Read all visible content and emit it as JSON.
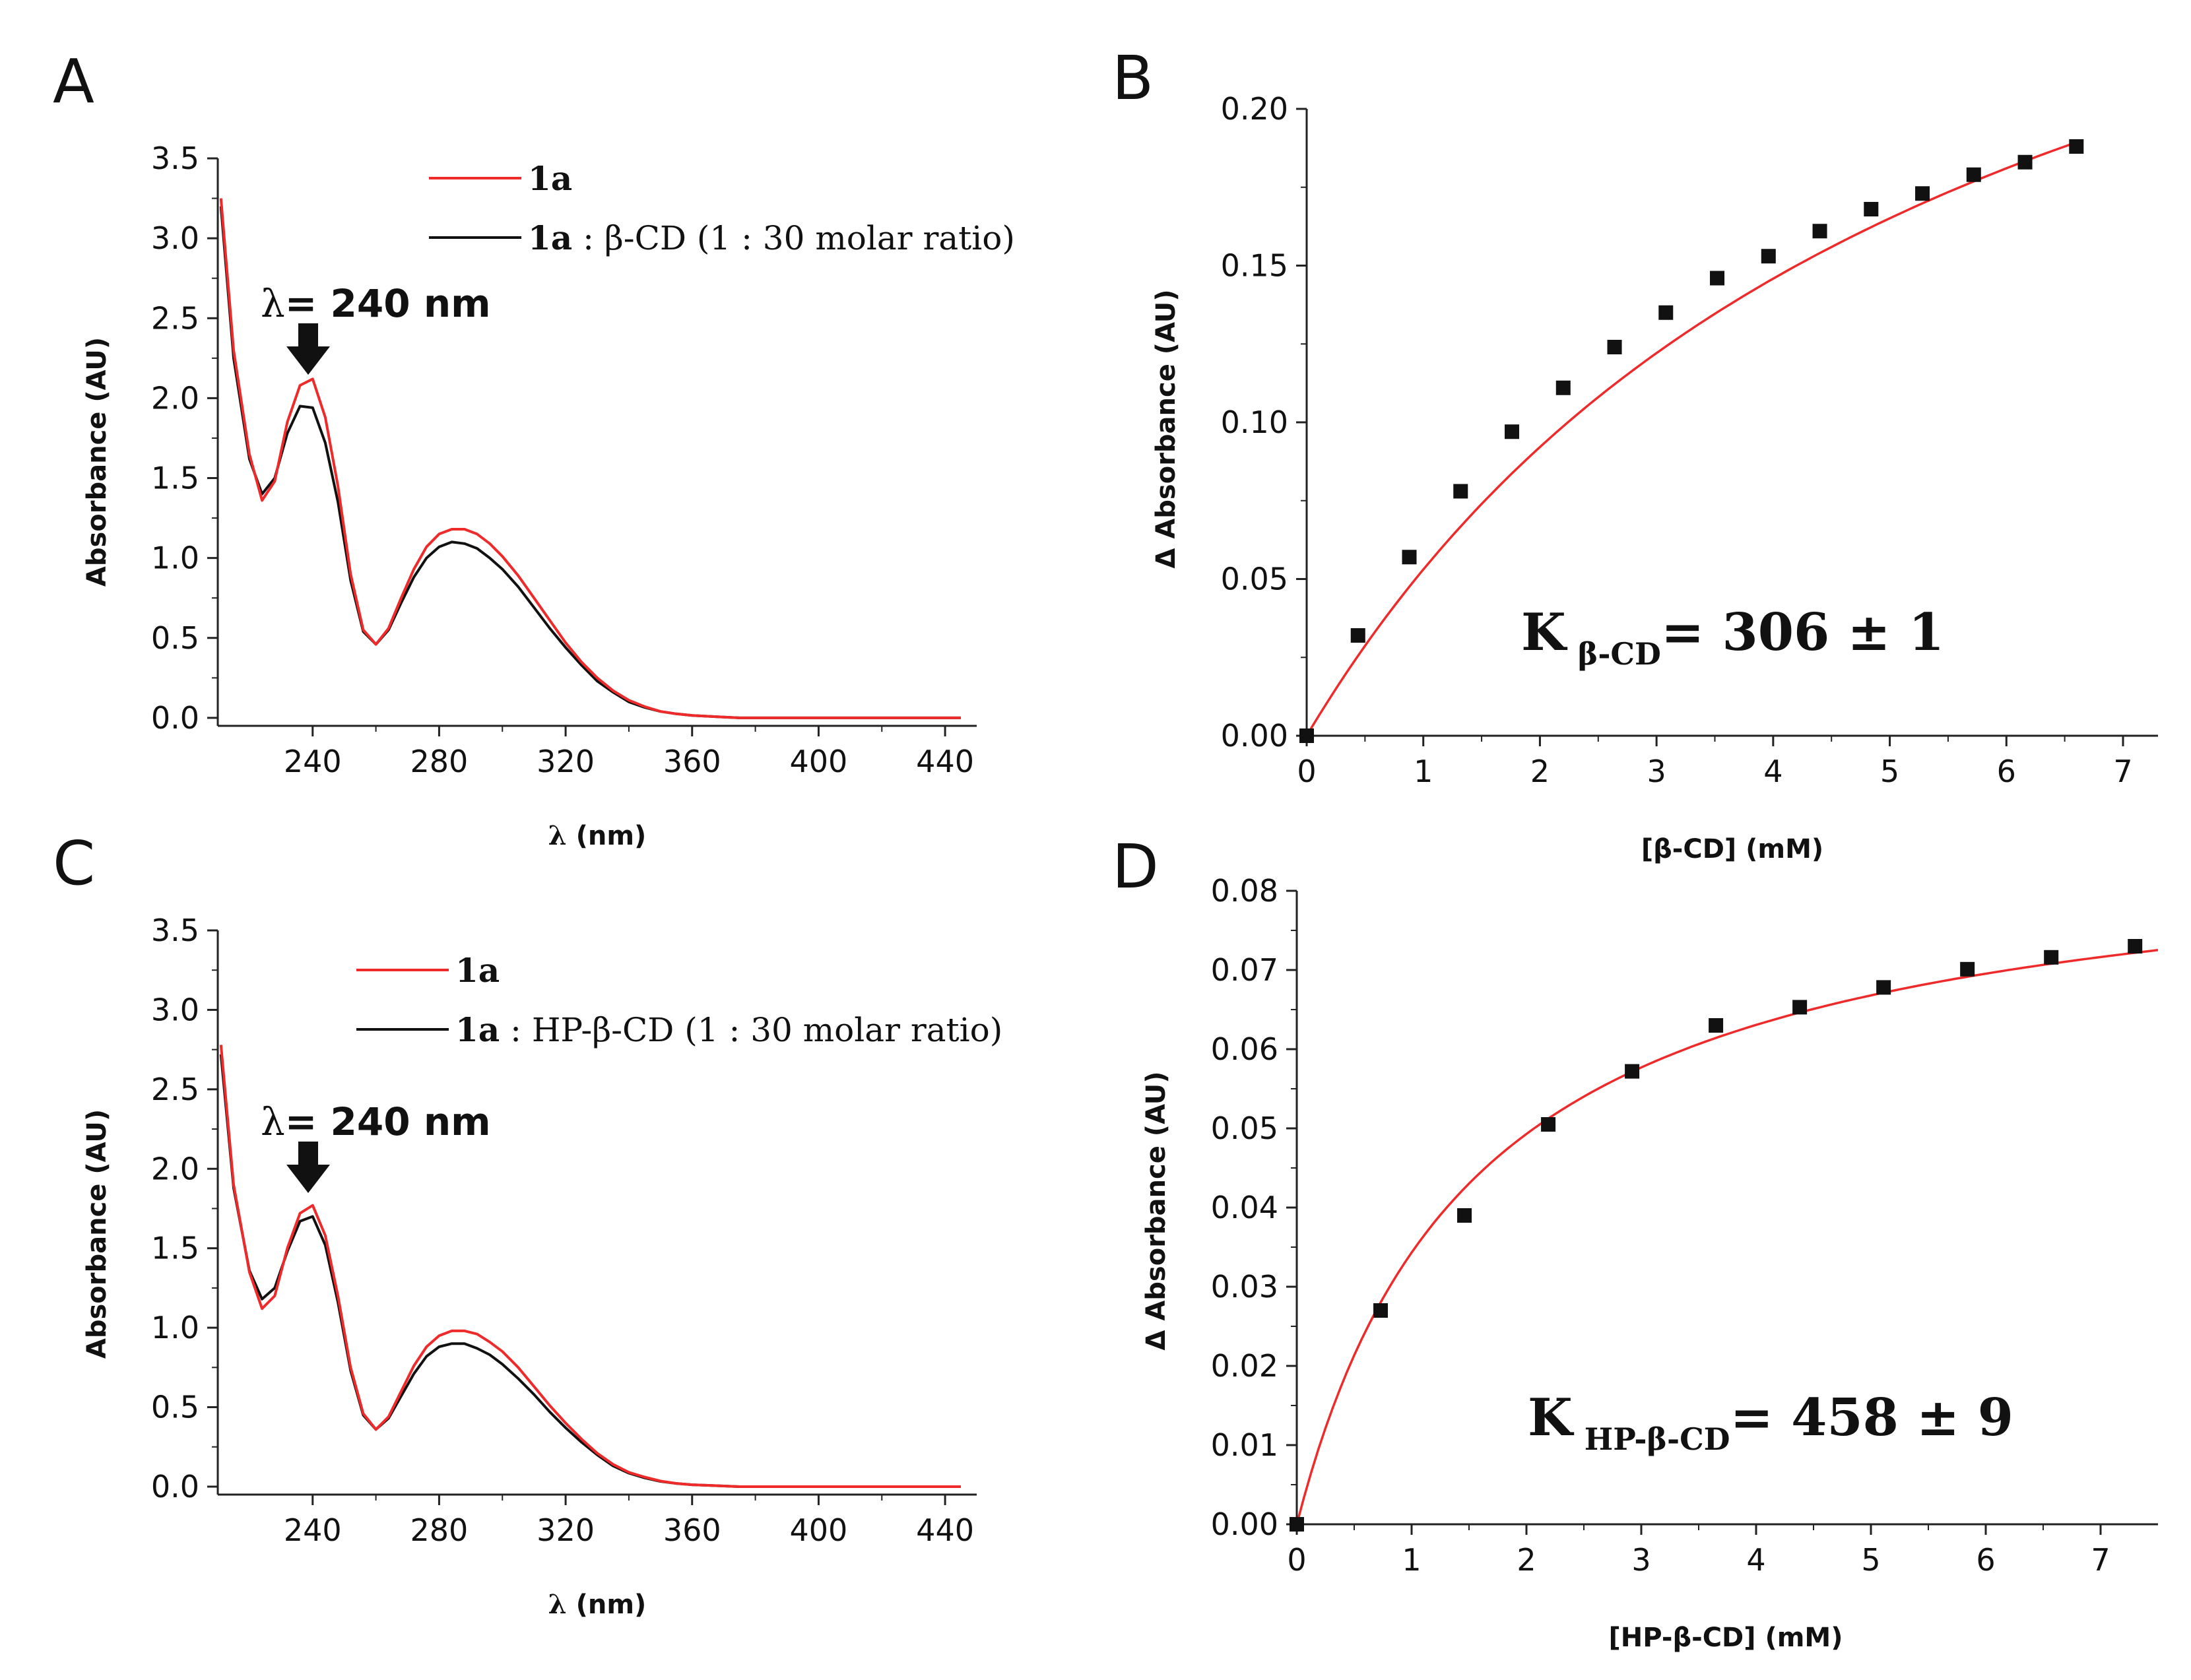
{
  "colors": {
    "red": "#ee2a2a",
    "black": "#111111",
    "axis": "#222222"
  },
  "chart_data": [
    {
      "panel": "A",
      "type": "line",
      "xlabel_symbol": "λ",
      "xlabel_rest": " (nm)",
      "ylabel": "Absorbance (AU)",
      "xlim": [
        210,
        450
      ],
      "ylim": [
        -0.05,
        3.5
      ],
      "xticks": [
        240,
        280,
        320,
        360,
        400,
        440
      ],
      "yticks": [
        0.0,
        0.5,
        1.0,
        1.5,
        2.0,
        2.5,
        3.0,
        3.5
      ],
      "ytick_labels": [
        "0.0",
        "0.5",
        "1.0",
        "1.5",
        "2.0",
        "2.5",
        "3.0",
        "3.5"
      ],
      "annotation": {
        "symbol": "λ",
        "text": "= 240 nm",
        "x": 240
      },
      "legend": [
        {
          "bold": "1a",
          "rest": "",
          "color": "red"
        },
        {
          "bold": "1a",
          "rest": " : β-CD (1 : 30 molar ratio)",
          "color": "black"
        }
      ],
      "series": [
        {
          "color": "red",
          "x": [
            211,
            215,
            220,
            224,
            228,
            232,
            236,
            240,
            244,
            248,
            252,
            256,
            260,
            264,
            268,
            272,
            276,
            280,
            284,
            288,
            292,
            296,
            300,
            305,
            310,
            315,
            320,
            325,
            330,
            335,
            340,
            345,
            350,
            355,
            360,
            365,
            370,
            375,
            380,
            390,
            400,
            420,
            445
          ],
          "y": [
            3.25,
            2.3,
            1.65,
            1.36,
            1.48,
            1.85,
            2.08,
            2.12,
            1.88,
            1.45,
            0.9,
            0.55,
            0.46,
            0.56,
            0.75,
            0.93,
            1.07,
            1.15,
            1.18,
            1.18,
            1.15,
            1.09,
            1.01,
            0.89,
            0.75,
            0.61,
            0.47,
            0.35,
            0.25,
            0.17,
            0.11,
            0.07,
            0.04,
            0.025,
            0.015,
            0.01,
            0.005,
            0.0,
            0.0,
            0.0,
            0.0,
            0.0,
            0.0
          ]
        },
        {
          "color": "black",
          "x": [
            211,
            215,
            220,
            224,
            228,
            232,
            236,
            240,
            244,
            248,
            252,
            256,
            260,
            264,
            268,
            272,
            276,
            280,
            284,
            288,
            292,
            296,
            300,
            305,
            310,
            315,
            320,
            325,
            330,
            335,
            340,
            345,
            350,
            355,
            360,
            365,
            370,
            375,
            380,
            390,
            400,
            420,
            445
          ],
          "y": [
            3.2,
            2.25,
            1.62,
            1.4,
            1.5,
            1.78,
            1.95,
            1.94,
            1.72,
            1.35,
            0.86,
            0.54,
            0.46,
            0.55,
            0.72,
            0.88,
            1.0,
            1.07,
            1.1,
            1.09,
            1.06,
            1.0,
            0.93,
            0.82,
            0.69,
            0.56,
            0.44,
            0.33,
            0.23,
            0.16,
            0.1,
            0.065,
            0.04,
            0.025,
            0.015,
            0.01,
            0.005,
            0.0,
            0.0,
            0.0,
            0.0,
            0.0,
            0.0
          ]
        }
      ]
    },
    {
      "panel": "B",
      "type": "scatter",
      "xlabel": "[β-CD] (mM)",
      "ylabel": "Δ Absorbance (AU)",
      "xlim": [
        0,
        7.3
      ],
      "ylim": [
        0,
        0.2
      ],
      "xticks": [
        0,
        1,
        2,
        3,
        4,
        5,
        6,
        7
      ],
      "yticks": [
        0.0,
        0.05,
        0.1,
        0.15,
        0.2
      ],
      "ytick_labels": [
        "0.00",
        "0.05",
        "0.10",
        "0.15",
        "0.20"
      ],
      "k_main": "K",
      "k_sub": "β-CD",
      "k_value": "= 306 ± 1",
      "points": {
        "x": [
          0,
          0.44,
          0.88,
          1.32,
          1.76,
          2.2,
          2.64,
          3.08,
          3.52,
          3.96,
          4.4,
          4.84,
          5.28,
          5.72,
          6.16,
          6.6
        ],
        "y": [
          0.0,
          0.032,
          0.057,
          0.078,
          0.097,
          0.111,
          0.124,
          0.135,
          0.146,
          0.153,
          0.161,
          0.168,
          0.173,
          0.179,
          0.183,
          0.188
        ]
      },
      "fit": {
        "ymax": 0.35,
        "kd": 5.6,
        "x_end": 6.6
      }
    },
    {
      "panel": "C",
      "type": "line",
      "xlabel_symbol": "λ",
      "xlabel_rest": " (nm)",
      "ylabel": "Absorbance (AU)",
      "xlim": [
        210,
        450
      ],
      "ylim": [
        -0.05,
        3.5
      ],
      "xticks": [
        240,
        280,
        320,
        360,
        400,
        440
      ],
      "yticks": [
        0.0,
        0.5,
        1.0,
        1.5,
        2.0,
        2.5,
        3.0,
        3.5
      ],
      "ytick_labels": [
        "0.0",
        "0.5",
        "1.0",
        "1.5",
        "2.0",
        "2.5",
        "3.0",
        "3.5"
      ],
      "annotation": {
        "symbol": "λ",
        "text": "= 240 nm",
        "x": 240
      },
      "legend": [
        {
          "bold": "1a",
          "rest": "",
          "color": "red"
        },
        {
          "bold": "1a",
          "rest": " : HP-β-CD (1 : 30 molar ratio)",
          "color": "black"
        }
      ],
      "series": [
        {
          "color": "red",
          "x": [
            211,
            215,
            220,
            224,
            228,
            232,
            236,
            240,
            244,
            248,
            252,
            256,
            260,
            264,
            268,
            272,
            276,
            280,
            284,
            288,
            292,
            296,
            300,
            305,
            310,
            315,
            320,
            325,
            330,
            335,
            340,
            345,
            350,
            355,
            360,
            365,
            370,
            375,
            380,
            390,
            400,
            420,
            445
          ],
          "y": [
            2.78,
            1.9,
            1.35,
            1.12,
            1.2,
            1.5,
            1.72,
            1.77,
            1.58,
            1.2,
            0.75,
            0.46,
            0.36,
            0.44,
            0.6,
            0.76,
            0.88,
            0.95,
            0.98,
            0.98,
            0.96,
            0.91,
            0.85,
            0.75,
            0.63,
            0.51,
            0.4,
            0.3,
            0.21,
            0.14,
            0.09,
            0.06,
            0.035,
            0.02,
            0.012,
            0.008,
            0.004,
            0.0,
            0.0,
            0.0,
            0.0,
            0.0,
            0.0
          ]
        },
        {
          "color": "black",
          "x": [
            211,
            215,
            220,
            224,
            228,
            232,
            236,
            240,
            244,
            248,
            252,
            256,
            260,
            264,
            268,
            272,
            276,
            280,
            284,
            288,
            292,
            296,
            300,
            305,
            310,
            315,
            320,
            325,
            330,
            335,
            340,
            345,
            350,
            355,
            360,
            365,
            370,
            375,
            380,
            390,
            400,
            420,
            445
          ],
          "y": [
            2.72,
            1.88,
            1.36,
            1.18,
            1.25,
            1.48,
            1.67,
            1.7,
            1.52,
            1.16,
            0.73,
            0.45,
            0.36,
            0.43,
            0.57,
            0.71,
            0.82,
            0.88,
            0.9,
            0.9,
            0.87,
            0.83,
            0.77,
            0.68,
            0.58,
            0.47,
            0.37,
            0.28,
            0.2,
            0.13,
            0.085,
            0.055,
            0.033,
            0.02,
            0.012,
            0.008,
            0.004,
            0.0,
            0.0,
            0.0,
            0.0,
            0.0,
            0.0
          ]
        }
      ]
    },
    {
      "panel": "D",
      "type": "scatter",
      "xlabel": "[HP-β-CD] (mM)",
      "ylabel": "Δ Absorbance (AU)",
      "xlim": [
        0,
        7.5
      ],
      "ylim": [
        0,
        0.08
      ],
      "xticks": [
        0,
        1,
        2,
        3,
        4,
        5,
        6,
        7
      ],
      "yticks": [
        0.0,
        0.01,
        0.02,
        0.03,
        0.04,
        0.05,
        0.06,
        0.07,
        0.08
      ],
      "ytick_labels": [
        "0.00",
        "0.01",
        "0.02",
        "0.03",
        "0.04",
        "0.05",
        "0.06",
        "0.07",
        "0.08"
      ],
      "k_main": "K",
      "k_sub": "HP-β-CD",
      "k_value": "= 458 ±  9",
      "points": {
        "x": [
          0,
          0.73,
          1.46,
          2.19,
          2.92,
          3.65,
          4.38,
          5.11,
          5.84,
          6.57,
          7.3
        ],
        "y": [
          0.0,
          0.027,
          0.039,
          0.0505,
          0.0572,
          0.063,
          0.0653,
          0.0678,
          0.0701,
          0.0716,
          0.073
        ]
      },
      "fit": {
        "ymax": 0.0875,
        "kd": 1.55,
        "x_end": 7.5
      }
    }
  ]
}
